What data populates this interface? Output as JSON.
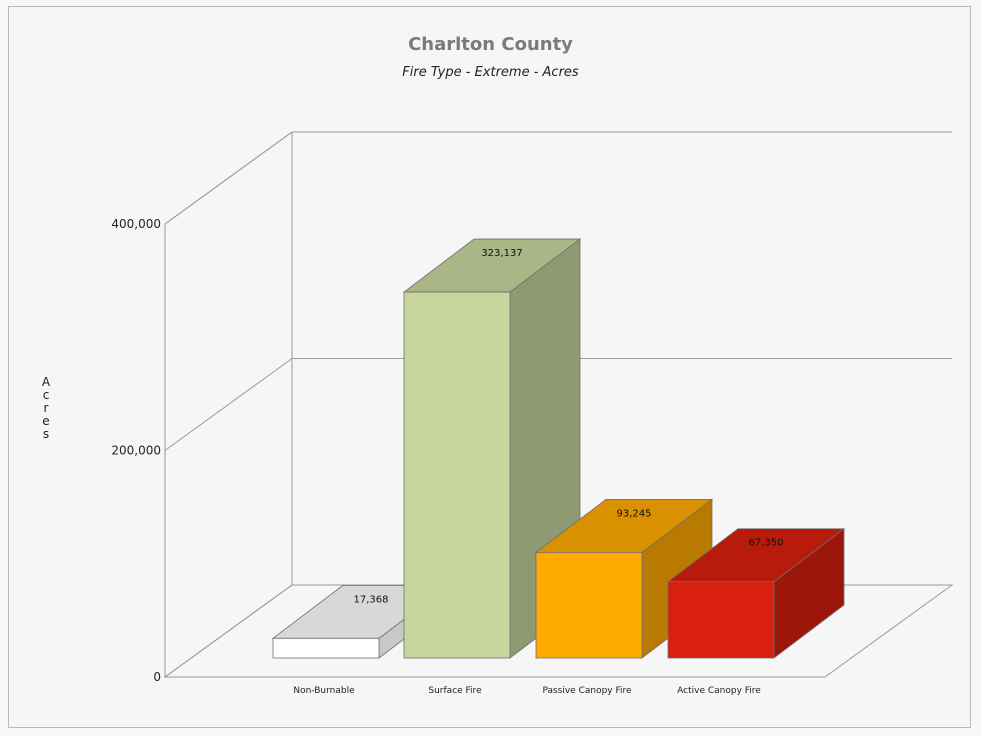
{
  "chart_data": {
    "type": "bar",
    "title": "Charlton County",
    "subtitle": "Fire Type - Extreme - Acres",
    "ylabel": "Acres",
    "xlabel": "",
    "ylim": [
      0,
      400000
    ],
    "yticks": [
      0,
      200000,
      400000
    ],
    "ytick_labels": [
      "0",
      "200,000",
      "400,000"
    ],
    "grid": true,
    "categories": [
      "Non-Burnable",
      "Surface Fire",
      "Passive Canopy Fire",
      "Active Canopy Fire"
    ],
    "values": [
      17368,
      323137,
      93245,
      67350
    ],
    "value_labels": [
      "17,368",
      "323,137",
      "93,245",
      "67,350"
    ],
    "colors": {
      "Non-Burnable": "#ffffff",
      "Surface Fire": "#c8d69e",
      "Passive Canopy Fire": "#ffaa00",
      "Active Canopy Fire": "#d9200e"
    }
  }
}
